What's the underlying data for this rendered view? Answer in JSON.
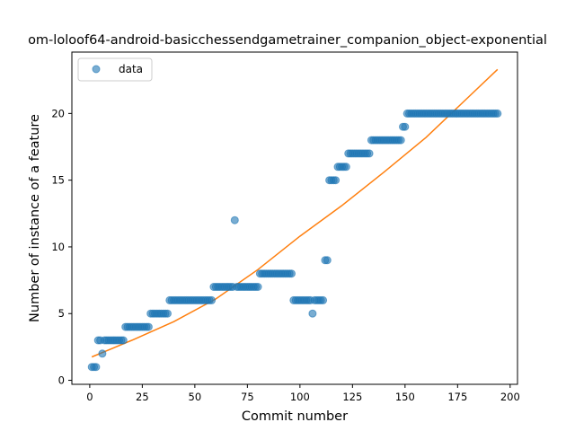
{
  "chart_data": {
    "type": "scatter",
    "title": "om-loloof64-android-basicchessendgametrainer_companion_object-exponential",
    "xlabel": "Commit number",
    "ylabel": "Number of instance of a feature",
    "xlim": [
      -8.5,
      203.5
    ],
    "ylim": [
      -0.3,
      24.6
    ],
    "xticks": [
      0,
      25,
      50,
      75,
      100,
      125,
      150,
      175,
      200
    ],
    "yticks": [
      0,
      5,
      10,
      15,
      20
    ],
    "grid": false,
    "legend": {
      "position": "top-left",
      "entries": [
        "data"
      ]
    },
    "colors": {
      "points": "#1f77b4",
      "fit": "#ff7f0e"
    },
    "series": [
      {
        "name": "data",
        "kind": "points",
        "x": [
          1,
          2,
          3,
          4,
          5,
          6,
          7,
          8,
          9,
          10,
          11,
          12,
          13,
          14,
          15,
          16,
          17,
          18,
          19,
          20,
          21,
          22,
          23,
          24,
          25,
          26,
          27,
          28,
          29,
          30,
          31,
          32,
          33,
          34,
          35,
          36,
          37,
          38,
          39,
          40,
          41,
          42,
          43,
          44,
          45,
          46,
          47,
          48,
          49,
          50,
          51,
          52,
          53,
          54,
          55,
          56,
          57,
          58,
          59,
          60,
          61,
          62,
          63,
          64,
          65,
          66,
          67,
          68,
          69,
          70,
          71,
          72,
          73,
          74,
          75,
          76,
          77,
          78,
          79,
          80,
          81,
          82,
          83,
          84,
          85,
          86,
          87,
          88,
          89,
          90,
          91,
          92,
          93,
          94,
          95,
          96,
          97,
          98,
          99,
          100,
          101,
          102,
          103,
          104,
          105,
          106,
          107,
          108,
          109,
          110,
          111,
          112,
          113,
          114,
          115,
          116,
          117,
          118,
          119,
          120,
          121,
          122,
          123,
          124,
          125,
          126,
          127,
          128,
          129,
          130,
          131,
          132,
          133,
          134,
          135,
          136,
          137,
          138,
          139,
          140,
          141,
          142,
          143,
          144,
          145,
          146,
          147,
          148,
          149,
          150,
          151,
          152,
          153,
          154,
          155,
          156,
          157,
          158,
          159,
          160,
          161,
          162,
          163,
          164,
          165,
          166,
          167,
          168,
          169,
          170,
          171,
          172,
          173,
          174,
          175,
          176,
          177,
          178,
          179,
          180,
          181,
          182,
          183,
          184,
          185,
          186,
          187,
          188,
          189,
          190,
          191,
          192,
          193,
          194
        ],
        "y": [
          1,
          1,
          1,
          3,
          3,
          2,
          3,
          3,
          3,
          3,
          3,
          3,
          3,
          3,
          3,
          3,
          4,
          4,
          4,
          4,
          4,
          4,
          4,
          4,
          4,
          4,
          4,
          4,
          5,
          5,
          5,
          5,
          5,
          5,
          5,
          5,
          5,
          6,
          6,
          6,
          6,
          6,
          6,
          6,
          6,
          6,
          6,
          6,
          6,
          6,
          6,
          6,
          6,
          6,
          6,
          6,
          6,
          6,
          7,
          7,
          7,
          7,
          7,
          7,
          7,
          7,
          7,
          7,
          12,
          7,
          7,
          7,
          7,
          7,
          7,
          7,
          7,
          7,
          7,
          7,
          8,
          8,
          8,
          8,
          8,
          8,
          8,
          8,
          8,
          8,
          8,
          8,
          8,
          8,
          8,
          8,
          6,
          6,
          6,
          6,
          6,
          6,
          6,
          6,
          6,
          5,
          6,
          6,
          6,
          6,
          6,
          9,
          9,
          15,
          15,
          15,
          15,
          16,
          16,
          16,
          16,
          16,
          17,
          17,
          17,
          17,
          17,
          17,
          17,
          17,
          17,
          17,
          17,
          18,
          18,
          18,
          18,
          18,
          18,
          18,
          18,
          18,
          18,
          18,
          18,
          18,
          18,
          18,
          19,
          19,
          20,
          20,
          20,
          20,
          20,
          20,
          20,
          20,
          20,
          20,
          20,
          20,
          20,
          20,
          20,
          20,
          20,
          20,
          20,
          20,
          20,
          20,
          20,
          20,
          20,
          20,
          20,
          20,
          20,
          20,
          20,
          20,
          20,
          20,
          20,
          20,
          20,
          20,
          20,
          20,
          20,
          20,
          20,
          20
        ]
      },
      {
        "name": "",
        "kind": "line",
        "x": [
          1,
          20,
          40,
          60,
          80,
          100,
          120,
          140,
          160,
          180,
          194
        ],
        "y": [
          1.75,
          3.0,
          4.4,
          6.1,
          8.3,
          10.8,
          13.1,
          15.6,
          18.2,
          21.2,
          23.3
        ]
      }
    ]
  }
}
